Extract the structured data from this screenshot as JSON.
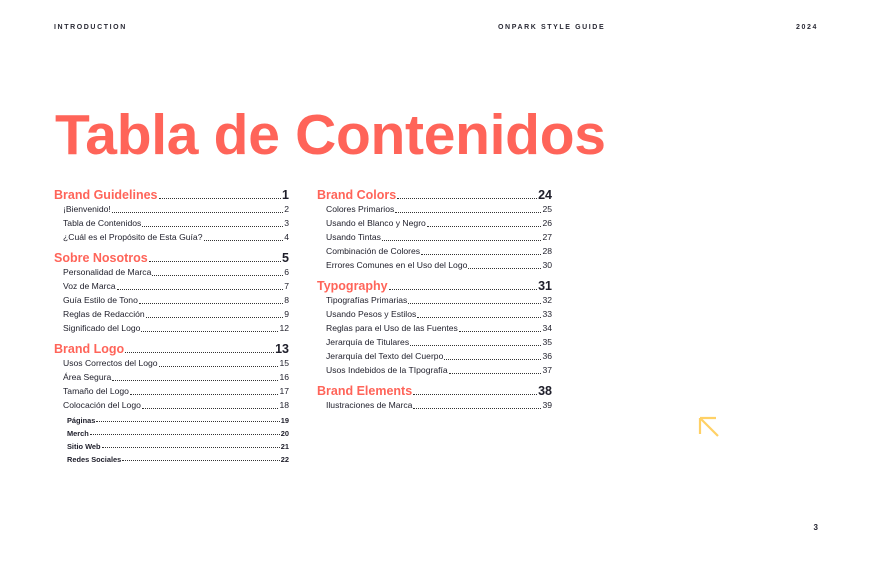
{
  "header": {
    "left": "INTRODUCTION",
    "center": "ONPARK STYLE GUIDE",
    "right": "2024"
  },
  "title": "Tabla de Contenidos",
  "accent_color": "#ff6459",
  "columns": [
    [
      {
        "type": "h",
        "label": "Brand Guidelines",
        "page": "1"
      },
      {
        "type": "i",
        "label": "¡Bienvenido!",
        "page": "2"
      },
      {
        "type": "i",
        "label": "Tabla de Contenidos",
        "page": "3"
      },
      {
        "type": "i",
        "label": "¿Cuál es el Propósito de Esta Guía?",
        "page": "4"
      },
      {
        "type": "h",
        "label": "Sobre Nosotros",
        "page": "5"
      },
      {
        "type": "i",
        "label": "Personalidad de Marca",
        "page": "6"
      },
      {
        "type": "i",
        "label": "Voz de Marca",
        "page": "7"
      },
      {
        "type": "i",
        "label": "Guía Estilo de Tono",
        "page": "8"
      },
      {
        "type": "i",
        "label": "Reglas de Redacción",
        "page": "9"
      },
      {
        "type": "i",
        "label": "Significado del Logo",
        "page": "12"
      },
      {
        "type": "h",
        "label": "Brand Logo",
        "page": "13"
      },
      {
        "type": "i",
        "label": "Usos Correctos del Logo",
        "page": "15"
      },
      {
        "type": "i",
        "label": "Área Segura",
        "page": "16"
      },
      {
        "type": "i",
        "label": "Tamaño del Logo",
        "page": "17"
      },
      {
        "type": "i",
        "label": "Colocación del Logo",
        "page": "18"
      },
      {
        "type": "s",
        "label": "Páginas",
        "page": "19"
      },
      {
        "type": "s",
        "label": "Merch",
        "page": "20"
      },
      {
        "type": "s",
        "label": "Sitio Web",
        "page": "21"
      },
      {
        "type": "s",
        "label": "Redes Sociales",
        "page": "22"
      }
    ],
    [
      {
        "type": "h",
        "label": "Brand Colors",
        "page": "24"
      },
      {
        "type": "i",
        "label": "Colores Primarios",
        "page": "25"
      },
      {
        "type": "i",
        "label": "Usando el Blanco y Negro",
        "page": "26"
      },
      {
        "type": "i",
        "label": "Usando Tintas",
        "page": "27"
      },
      {
        "type": "i",
        "label": "Combinación de Colores",
        "page": "28"
      },
      {
        "type": "i",
        "label": "Errores Comunes en el Uso del Logo",
        "page": "30"
      },
      {
        "type": "h",
        "label": "Typography",
        "page": "31"
      },
      {
        "type": "i",
        "label": "Tipografías Primarias",
        "page": "32"
      },
      {
        "type": "i",
        "label": "Usando Pesos y Estilos",
        "page": "33"
      },
      {
        "type": "i",
        "label": "Reglas para el Uso de las Fuentes",
        "page": "34"
      },
      {
        "type": "i",
        "label": "Jerarquía de Titulares",
        "page": "35"
      },
      {
        "type": "i",
        "label": "Jerarquía del Texto del Cuerpo",
        "page": "36"
      },
      {
        "type": "i",
        "label": "Usos Indebidos de la TIpografía",
        "page": "37"
      },
      {
        "type": "h",
        "label": "Brand Elements",
        "page": "38"
      },
      {
        "type": "i",
        "label": "Ilustraciones de Marca",
        "page": "39"
      }
    ]
  ],
  "decoration": {
    "icon": "arrow-up-left-icon",
    "color": "#ffd166"
  },
  "page_number": "3"
}
